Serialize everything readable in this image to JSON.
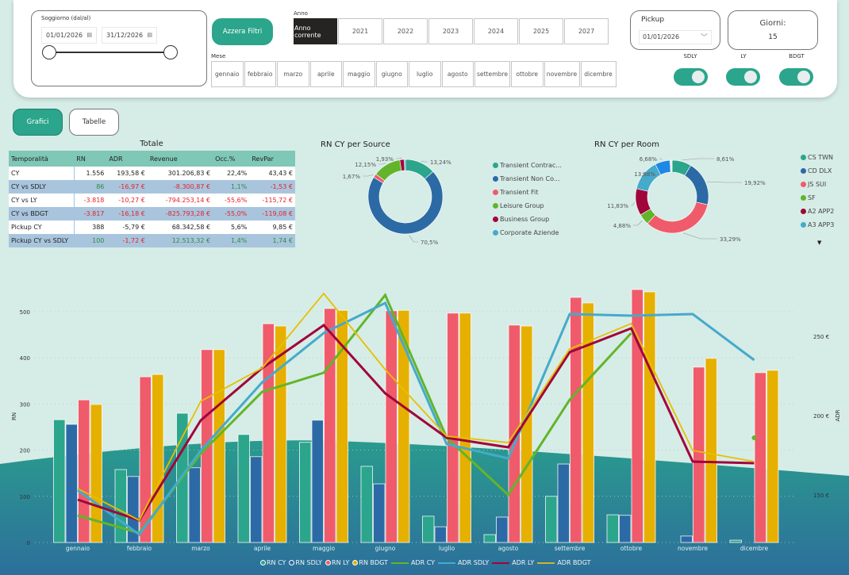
{
  "filters": {
    "soggiorno_label": "Soggiorno (dal/al)",
    "date_from": "01/01/2026",
    "date_to": "31/12/2026",
    "reset_button": "Azzera Filtri",
    "anno_label": "Anno",
    "anni": [
      "Anno corrente",
      "2021",
      "2022",
      "2023",
      "2024",
      "2025",
      "2027"
    ],
    "anno_selected": "Anno corrente",
    "mese_label": "Mese",
    "mesi": [
      "gennaio",
      "febbraio",
      "marzo",
      "aprile",
      "maggio",
      "giugno",
      "luglio",
      "agosto",
      "settembre",
      "ottobre",
      "novembre",
      "dicembre"
    ],
    "pickup_label": "Pickup",
    "pickup_date": "01/01/2026",
    "giorni_label": "Giorni:",
    "giorni_value": "15",
    "toggles": [
      {
        "label": "SDLY",
        "on": true
      },
      {
        "label": "LY",
        "on": true
      },
      {
        "label": "BDGT",
        "on": true
      }
    ]
  },
  "view": {
    "grafici": "Grafici",
    "tabelle": "Tabelle",
    "active": "Grafici"
  },
  "totale": {
    "title": "Totale",
    "columns": [
      "Temporalità",
      "RN",
      "ADR",
      "Revenue",
      "Occ.%",
      "RevPar"
    ],
    "rows": [
      {
        "cells": [
          "CY",
          "1.556",
          "193,58 €",
          "301.206,83 €",
          "22,4%",
          "43,43 €"
        ],
        "tones": [
          "",
          "",
          "",
          "",
          "",
          ""
        ]
      },
      {
        "cells": [
          "CY vs SDLY",
          "86",
          "-16,97 €",
          "-8.300,87 €",
          "1,1%",
          "-1,53 €"
        ],
        "tones": [
          "",
          "pos",
          "neg",
          "neg",
          "pos",
          "neg"
        ]
      },
      {
        "cells": [
          "CY vs LY",
          "-3.818",
          "-10,27 €",
          "-794.253,14 €",
          "-55,6%",
          "-115,72 €"
        ],
        "tones": [
          "",
          "neg",
          "neg",
          "neg",
          "neg",
          "neg"
        ]
      },
      {
        "cells": [
          "CY vs BDGT",
          "-3.817",
          "-16,18 €",
          "-825.793,28 €",
          "-55,0%",
          "-119,08 €"
        ],
        "tones": [
          "",
          "neg",
          "neg",
          "neg",
          "neg",
          "neg"
        ]
      },
      {
        "cells": [
          "Pickup CY",
          "388",
          "-5,79 €",
          "68.342,58 €",
          "5,6%",
          "9,85 €"
        ],
        "tones": [
          "",
          "",
          "",
          "",
          "",
          ""
        ]
      },
      {
        "cells": [
          "Pickup CY vs SDLY",
          "100",
          "-1,72 €",
          "12.513,32 €",
          "1,4%",
          "1,74 €"
        ],
        "tones": [
          "",
          "pos",
          "neg",
          "pos",
          "pos",
          "pos"
        ]
      }
    ]
  },
  "chart_data": [
    {
      "type": "pie",
      "title": "RN CY per Source",
      "donut": true,
      "legend_position": "right",
      "slices": [
        {
          "label": "Transient Contrac...",
          "value": 13.24,
          "display": "13,24%",
          "color": "#2ba58b"
        },
        {
          "label": "Transient Non Co...",
          "value": 70.5,
          "display": "70,5%",
          "color": "#2c6aa5"
        },
        {
          "label": "Transient Fit",
          "value": 1.67,
          "display": "1,67%",
          "color": "#f05b6b"
        },
        {
          "label": "Leisure Group",
          "value": 12.15,
          "display": "12,15%",
          "color": "#62b52a"
        },
        {
          "label": "Business Group",
          "value": 1.93,
          "display": "1,93%",
          "color": "#a0063a"
        },
        {
          "label": "Corporate Aziende",
          "value": 0.51,
          "display": "",
          "color": "#45aacb"
        }
      ]
    },
    {
      "type": "pie",
      "title": "RN CY per Room",
      "donut": true,
      "legend_position": "right",
      "slices": [
        {
          "label": "CS TWN",
          "value": 8.61,
          "display": "8,61%",
          "color": "#2ba58b"
        },
        {
          "label": "CD DLX",
          "value": 19.92,
          "display": "19,92%",
          "color": "#2c6aa5"
        },
        {
          "label": "JS SUI",
          "value": 33.29,
          "display": "33,29%",
          "color": "#f05b6b"
        },
        {
          "label": "SF",
          "value": 4.88,
          "display": "4,88%",
          "color": "#62b52a"
        },
        {
          "label": "A2 APP2",
          "value": 11.83,
          "display": "11,83%",
          "color": "#a0063a"
        },
        {
          "label": "A3 APP3",
          "value": 13.88,
          "display": "13,88%",
          "color": "#45aacb"
        },
        {
          "label": "",
          "value": 6.68,
          "display": "6,68%",
          "color": "#1e88e5"
        },
        {
          "label": "",
          "value": 0.91,
          "display": "",
          "color": "#e8eef0"
        }
      ]
    },
    {
      "type": "bar",
      "title": "",
      "xlabel": "",
      "ylabel": "RN",
      "y2label": "ADR",
      "ylim": [
        0,
        520
      ],
      "yticks": [
        0,
        100,
        200,
        300,
        400,
        500
      ],
      "y2lim": [
        120,
        268
      ],
      "y2ticks": [
        "150 €",
        "200 €",
        "250 €"
      ],
      "y2tick_values": [
        150,
        200,
        250
      ],
      "grid": true,
      "legend_position": "bottom",
      "categories": [
        "gennaio",
        "febbraio",
        "marzo",
        "aprile",
        "maggio",
        "giugno",
        "luglio",
        "agosto",
        "settembre",
        "ottobre",
        "novembre",
        "dicembre"
      ],
      "series": [
        {
          "name": "RN CY",
          "kind": "bar",
          "color": "#2ba58b",
          "values": [
            266,
            158,
            280,
            234,
            217,
            165,
            57,
            17,
            100,
            60,
            0,
            5
          ]
        },
        {
          "name": "RN SDLY",
          "kind": "bar",
          "color": "#2c6aa5",
          "values": [
            256,
            143,
            162,
            186,
            265,
            127,
            34,
            55,
            170,
            59,
            14,
            0
          ]
        },
        {
          "name": "RN LY",
          "kind": "bar",
          "color": "#f05b6b",
          "values": [
            309,
            359,
            418,
            474,
            507,
            502,
            497,
            471,
            531,
            548,
            380,
            368
          ]
        },
        {
          "name": "RN BDGT",
          "kind": "bar",
          "color": "#e6b000",
          "values": [
            299,
            364,
            418,
            469,
            503,
            503,
            497,
            469,
            519,
            543,
            399,
            373
          ]
        },
        {
          "name": "ADR CY",
          "kind": "line",
          "axis": "y2",
          "color": "#62b52a",
          "values": [
            137,
            126,
            176,
            215,
            227,
            276,
            186,
            150,
            210,
            252,
            null,
            186
          ]
        },
        {
          "name": "ADR SDLY",
          "kind": "line",
          "axis": "y2",
          "color": "#45aacb",
          "values": [
            153,
            125,
            178,
            221,
            252,
            271,
            182,
            173,
            264,
            263,
            264,
            235
          ]
        },
        {
          "name": "ADR LY",
          "kind": "line",
          "axis": "y2",
          "color": "#a0063a",
          "values": [
            147,
            134,
            197,
            230,
            257,
            214,
            186,
            180,
            240,
            255,
            171,
            170
          ]
        },
        {
          "name": "ADR BDGT",
          "kind": "line",
          "axis": "y2",
          "color": "#e6c000",
          "values": [
            154,
            134,
            209,
            230,
            277,
            229,
            187,
            183,
            242,
            258,
            178,
            171
          ]
        }
      ]
    }
  ],
  "legend_bottom": [
    {
      "label": "RN CY",
      "kind": "circle",
      "color": "#2ba58b"
    },
    {
      "label": "RN SDLY",
      "kind": "circle",
      "color": "#2c6aa5"
    },
    {
      "label": "RN LY",
      "kind": "circle",
      "color": "#f05b6b"
    },
    {
      "label": "RN BDGT",
      "kind": "circle",
      "color": "#e6b000"
    },
    {
      "label": "ADR CY",
      "kind": "line",
      "color": "#62b52a"
    },
    {
      "label": "ADR SDLY",
      "kind": "line",
      "color": "#45aacb"
    },
    {
      "label": "ADR LY",
      "kind": "line",
      "color": "#a0063a"
    },
    {
      "label": "ADR BDGT",
      "kind": "line",
      "color": "#c9b82a"
    }
  ],
  "colors": {
    "accent": "#2ba58b",
    "background": "#d6ece7",
    "wave_top": "#2a9b8e",
    "wave_bottom": "#2c6f9b"
  }
}
